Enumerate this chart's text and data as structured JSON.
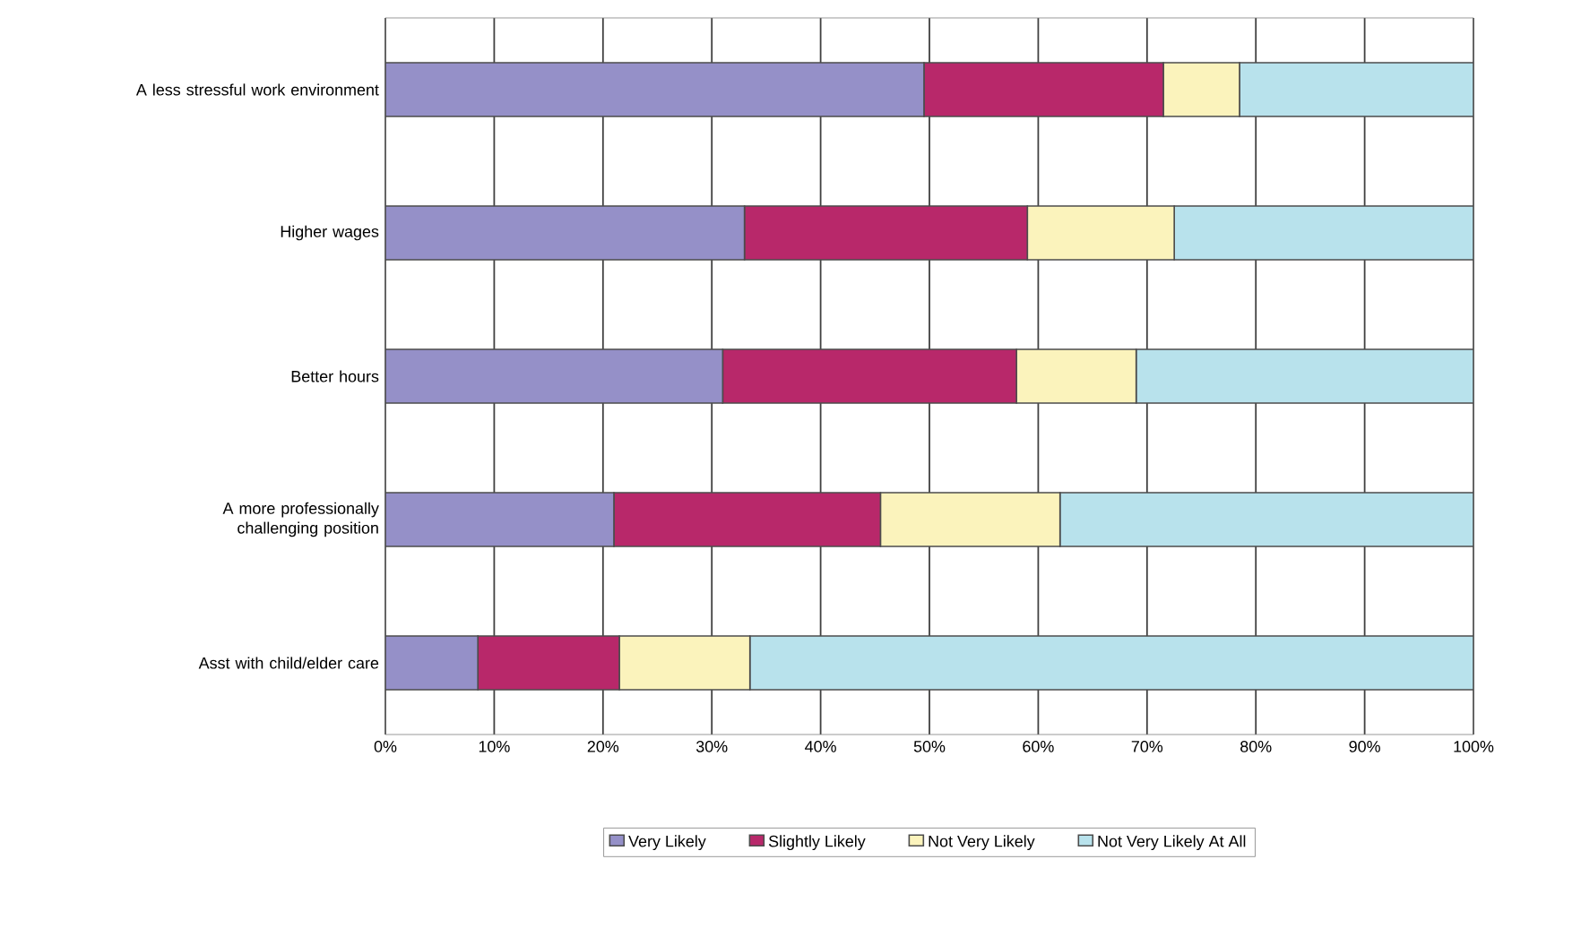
{
  "chart_data": {
    "type": "bar",
    "orientation": "horizontal",
    "stacked": true,
    "categories": [
      "A less stressful work environment",
      "Higher wages",
      "Better hours",
      "A more professionally challenging position",
      "Asst with child/elder care"
    ],
    "series": [
      {
        "name": "Very Likely",
        "color": "#9590c8",
        "values": [
          49.5,
          33,
          31,
          21,
          8.5
        ]
      },
      {
        "name": "Slightly Likely",
        "color": "#b8286a",
        "values": [
          22,
          26,
          27,
          24.5,
          13
        ]
      },
      {
        "name": "Not Very Likely",
        "color": "#fbf3bc",
        "values": [
          7,
          13.5,
          11,
          16.5,
          12
        ]
      },
      {
        "name": "Not Very Likely At All",
        "color": "#b8e2ec",
        "values": [
          21.5,
          27.5,
          31,
          38,
          66.5
        ]
      }
    ],
    "xlim": [
      0,
      100
    ],
    "xticks": [
      {
        "value": 0,
        "label": "0%"
      },
      {
        "value": 10,
        "label": "10%"
      },
      {
        "value": 20,
        "label": "20%"
      },
      {
        "value": 30,
        "label": "30%"
      },
      {
        "value": 40,
        "label": "40%"
      },
      {
        "value": 50,
        "label": "50%"
      },
      {
        "value": 60,
        "label": "60%"
      },
      {
        "value": 70,
        "label": "70%"
      },
      {
        "value": 80,
        "label": "80%"
      },
      {
        "value": 90,
        "label": "90%"
      },
      {
        "value": 100,
        "label": "100%"
      }
    ],
    "grid": "x",
    "legend": "bottom"
  }
}
